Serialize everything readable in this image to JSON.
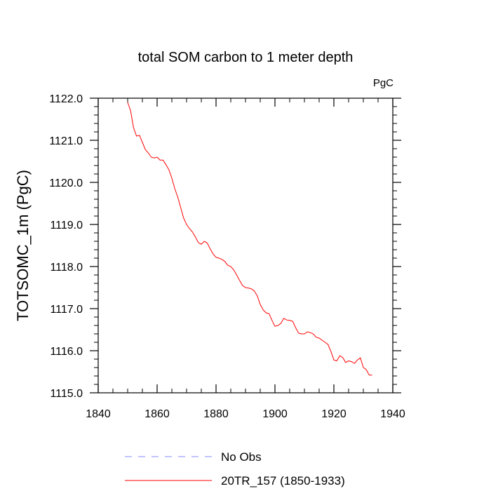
{
  "chart_data": {
    "type": "line",
    "title": "total SOM carbon to 1 meter depth",
    "units_label": "PgC",
    "xlabel": "",
    "ylabel": "TOTSOMC_1m  (PgC)",
    "xlim": [
      1840,
      1940
    ],
    "ylim": [
      1115.0,
      1122.0
    ],
    "x_ticks": [
      1840,
      1860,
      1880,
      1900,
      1920,
      1940
    ],
    "x_tick_labels": [
      "1840",
      "1860",
      "1880",
      "1900",
      "1920",
      "1940"
    ],
    "y_ticks": [
      1115.0,
      1116.0,
      1117.0,
      1118.0,
      1119.0,
      1120.0,
      1121.0,
      1122.0
    ],
    "y_tick_labels": [
      "1115.0",
      "1116.0",
      "1117.0",
      "1118.0",
      "1119.0",
      "1120.0",
      "1121.0",
      "1122.0"
    ],
    "x_minor_step": 5,
    "y_minor_step": 0.2,
    "grid": false,
    "legend_position": "bottom",
    "legend": [
      {
        "label": "No Obs",
        "color": "#8a8aff",
        "style": "dashed"
      },
      {
        "label": "20TR_157 (1850-1933)",
        "color": "#ff0000",
        "style": "solid"
      }
    ],
    "series": [
      {
        "name": "No Obs",
        "color": "#8a8aff",
        "style": "dashed",
        "x": [],
        "y": []
      },
      {
        "name": "20TR_157 (1850-1933)",
        "color": "#ff0000",
        "style": "solid",
        "x": [
          1850,
          1851,
          1852,
          1853,
          1854,
          1855,
          1856,
          1857,
          1858,
          1859,
          1860,
          1861,
          1862,
          1863,
          1864,
          1865,
          1866,
          1867,
          1868,
          1869,
          1870,
          1871,
          1872,
          1873,
          1874,
          1875,
          1876,
          1877,
          1878,
          1879,
          1880,
          1881,
          1882,
          1883,
          1884,
          1885,
          1886,
          1887,
          1888,
          1889,
          1890,
          1891,
          1892,
          1893,
          1894,
          1895,
          1896,
          1897,
          1898,
          1899,
          1900,
          1901,
          1902,
          1903,
          1904,
          1905,
          1906,
          1907,
          1908,
          1909,
          1910,
          1911,
          1912,
          1913,
          1914,
          1915,
          1916,
          1917,
          1918,
          1919,
          1920,
          1921,
          1922,
          1923,
          1924,
          1925,
          1926,
          1927,
          1928,
          1929,
          1930,
          1931,
          1932,
          1933
        ],
        "y": [
          1121.9,
          1121.7,
          1121.3,
          1121.1,
          1121.12,
          1120.95,
          1120.78,
          1120.7,
          1120.6,
          1120.58,
          1120.6,
          1120.53,
          1120.53,
          1120.42,
          1120.3,
          1120.1,
          1119.85,
          1119.65,
          1119.4,
          1119.15,
          1119.0,
          1118.9,
          1118.82,
          1118.7,
          1118.57,
          1118.53,
          1118.6,
          1118.56,
          1118.42,
          1118.3,
          1118.22,
          1118.2,
          1118.17,
          1118.12,
          1118.03,
          1118.0,
          1117.92,
          1117.8,
          1117.67,
          1117.55,
          1117.5,
          1117.49,
          1117.47,
          1117.42,
          1117.3,
          1117.1,
          1116.97,
          1116.9,
          1116.88,
          1116.72,
          1116.58,
          1116.6,
          1116.65,
          1116.77,
          1116.73,
          1116.72,
          1116.7,
          1116.55,
          1116.42,
          1116.4,
          1116.4,
          1116.45,
          1116.43,
          1116.4,
          1116.32,
          1116.3,
          1116.25,
          1116.2,
          1116.15,
          1115.98,
          1115.78,
          1115.76,
          1115.88,
          1115.84,
          1115.72,
          1115.76,
          1115.74,
          1115.7,
          1115.78,
          1115.83,
          1115.6,
          1115.55,
          1115.42,
          1115.42
        ]
      }
    ]
  }
}
